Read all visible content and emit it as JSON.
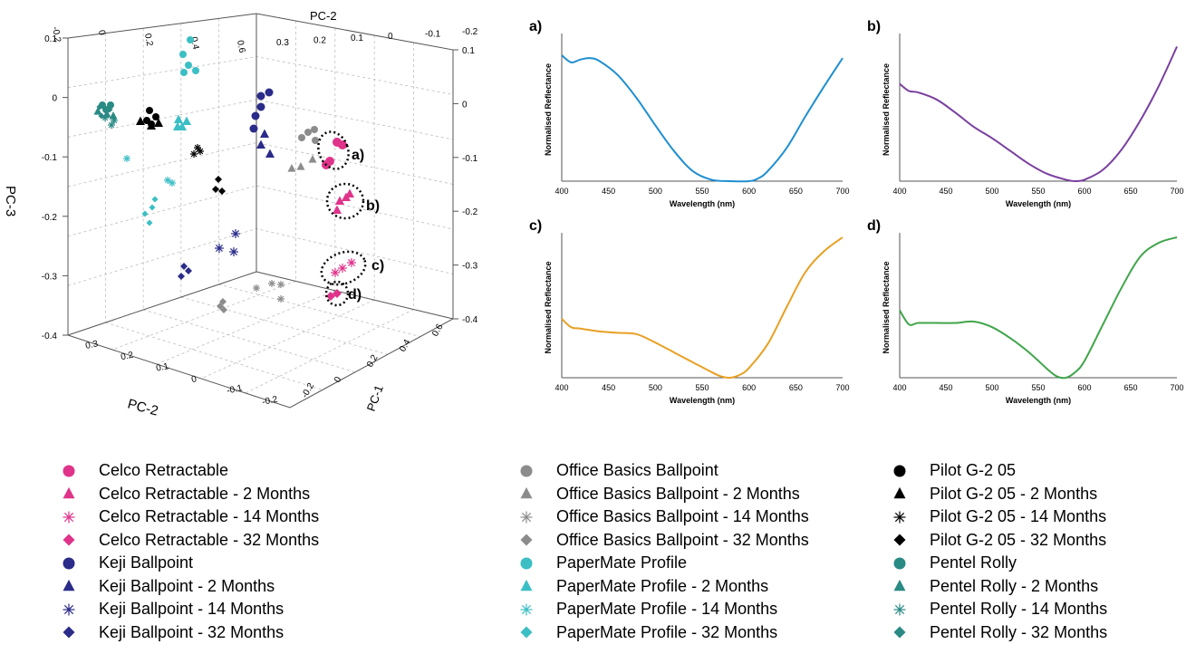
{
  "colors": {
    "celco": "#e0338a",
    "keji": "#2b2b8a",
    "office": "#8c8c8c",
    "papermate": "#3bbfc4",
    "pilot": "#000000",
    "pentel": "#2a8a84",
    "spectrum_a": "#1f8fd0",
    "spectrum_b": "#7a3fa0",
    "spectrum_c": "#e8a023",
    "spectrum_d": "#3fa54a"
  },
  "chart_data": [
    {
      "type": "scatter",
      "subtype": "3d-scatter",
      "axes": {
        "x": {
          "label": "PC-2",
          "ticks": [
            "0.3",
            "0.2",
            "0.1",
            "0",
            "-0.1",
            "-0.2"
          ]
        },
        "y": {
          "label": "PC-1",
          "ticks": [
            "0.6",
            "0.4",
            "0.2",
            "0",
            "-0.2"
          ]
        },
        "z": {
          "label": "PC-3",
          "ticks": [
            "0.1",
            "0",
            "-0.1",
            "-0.2",
            "-0.3",
            "-0.4"
          ]
        },
        "top_pc2_ticks": [
          "0.3",
          "0.2",
          "0.1",
          "0",
          "-0.1",
          "-0.2"
        ],
        "top_pc1_ticks": [
          "-0.2",
          "0",
          "0.2",
          "0.4",
          "0.6"
        ]
      },
      "grid": true,
      "callouts": [
        "a)",
        "b)",
        "c)",
        "d)"
      ],
      "series": [
        {
          "name": "Celco Retractable",
          "marker": "circle",
          "color": "celco"
        },
        {
          "name": "Celco Retractable - 2 Months",
          "marker": "triangle",
          "color": "celco"
        },
        {
          "name": "Celco Retractable - 14 Months",
          "marker": "asterisk",
          "color": "celco"
        },
        {
          "name": "Celco Retractable - 32 Months",
          "marker": "diamond",
          "color": "celco"
        },
        {
          "name": "Keji Ballpoint",
          "marker": "circle",
          "color": "keji"
        },
        {
          "name": "Keji Ballpoint - 2 Months",
          "marker": "triangle",
          "color": "keji"
        },
        {
          "name": "Keji Ballpoint - 14 Months",
          "marker": "asterisk",
          "color": "keji"
        },
        {
          "name": "Keji Ballpoint - 32 Months",
          "marker": "diamond",
          "color": "keji"
        },
        {
          "name": "Office Basics Ballpoint",
          "marker": "circle",
          "color": "office"
        },
        {
          "name": "Office Basics Ballpoint - 2 Months",
          "marker": "triangle",
          "color": "office"
        },
        {
          "name": "Office Basics Ballpoint - 14 Months",
          "marker": "asterisk",
          "color": "office"
        },
        {
          "name": "Office Basics Ballpoint - 32 Months",
          "marker": "diamond",
          "color": "office"
        },
        {
          "name": "PaperMate Profile",
          "marker": "circle",
          "color": "papermate"
        },
        {
          "name": "PaperMate Profile - 2 Months",
          "marker": "triangle",
          "color": "papermate"
        },
        {
          "name": "PaperMate Profile - 14 Months",
          "marker": "asterisk",
          "color": "papermate"
        },
        {
          "name": "PaperMate Profile - 32 Months",
          "marker": "diamond",
          "color": "papermate"
        },
        {
          "name": "Pilot G-2 05",
          "marker": "circle",
          "color": "pilot"
        },
        {
          "name": "Pilot G-2 05 - 2 Months",
          "marker": "triangle",
          "color": "pilot"
        },
        {
          "name": "Pilot G-2 05 - 14 Months",
          "marker": "asterisk",
          "color": "pilot"
        },
        {
          "name": "Pilot G-2 05 - 32 Months",
          "marker": "diamond",
          "color": "pilot"
        },
        {
          "name": "Pentel Rolly",
          "marker": "circle",
          "color": "pentel"
        },
        {
          "name": "Pentel Rolly - 2 Months",
          "marker": "triangle",
          "color": "pentel"
        },
        {
          "name": "Pentel Rolly - 14 Months",
          "marker": "asterisk",
          "color": "pentel"
        },
        {
          "name": "Pentel Rolly - 32 Months",
          "marker": "diamond",
          "color": "pentel"
        }
      ]
    },
    {
      "type": "line",
      "panel_label": "a)",
      "color": "spectrum_a",
      "xlabel": "Wavelength (nm)",
      "ylabel": "Normalised Reflectance",
      "xlim": [
        400,
        700
      ],
      "ylim": [
        0,
        1
      ],
      "x_ticks": [
        400,
        450,
        500,
        550,
        600,
        650,
        700
      ],
      "x": [
        400,
        410,
        420,
        430,
        440,
        460,
        480,
        500,
        520,
        540,
        560,
        580,
        600,
        610,
        620,
        640,
        660,
        680,
        700
      ],
      "y": [
        0.88,
        0.83,
        0.85,
        0.86,
        0.84,
        0.74,
        0.58,
        0.39,
        0.21,
        0.07,
        0.01,
        0.0,
        0.0,
        0.02,
        0.07,
        0.23,
        0.45,
        0.66,
        0.86
      ]
    },
    {
      "type": "line",
      "panel_label": "b)",
      "color": "spectrum_b",
      "xlabel": "Wavelength (nm)",
      "ylabel": "Normalised Reflectance",
      "xlim": [
        400,
        700
      ],
      "ylim": [
        0,
        1
      ],
      "x_ticks": [
        400,
        450,
        500,
        550,
        600,
        650,
        700
      ],
      "x": [
        400,
        410,
        420,
        440,
        460,
        480,
        500,
        520,
        540,
        560,
        580,
        590,
        600,
        620,
        640,
        660,
        680,
        700
      ],
      "y": [
        0.68,
        0.63,
        0.62,
        0.57,
        0.48,
        0.38,
        0.3,
        0.21,
        0.12,
        0.05,
        0.01,
        0.0,
        0.01,
        0.08,
        0.22,
        0.42,
        0.66,
        0.94
      ]
    },
    {
      "type": "line",
      "panel_label": "c)",
      "color": "spectrum_c",
      "xlabel": "Wavelength (nm)",
      "ylabel": "Normalised Reflectance",
      "xlim": [
        400,
        700
      ],
      "ylim": [
        0,
        1
      ],
      "x_ticks": [
        400,
        450,
        500,
        550,
        600,
        650,
        700
      ],
      "x": [
        400,
        410,
        420,
        440,
        460,
        480,
        500,
        520,
        540,
        560,
        570,
        580,
        590,
        600,
        620,
        640,
        660,
        680,
        700
      ],
      "y": [
        0.42,
        0.36,
        0.35,
        0.33,
        0.32,
        0.31,
        0.25,
        0.18,
        0.11,
        0.04,
        0.01,
        0.0,
        0.02,
        0.07,
        0.24,
        0.5,
        0.75,
        0.9,
        1.0
      ]
    },
    {
      "type": "line",
      "panel_label": "d)",
      "color": "spectrum_d",
      "xlabel": "Wavelength (nm)",
      "ylabel": "Normalised Reflectance",
      "xlim": [
        400,
        700
      ],
      "ylim": [
        0,
        1
      ],
      "x_ticks": [
        400,
        450,
        500,
        550,
        600,
        650,
        700
      ],
      "x": [
        400,
        410,
        420,
        440,
        460,
        480,
        500,
        520,
        540,
        560,
        570,
        580,
        590,
        600,
        620,
        640,
        660,
        680,
        700
      ],
      "y": [
        0.48,
        0.38,
        0.39,
        0.39,
        0.39,
        0.4,
        0.36,
        0.28,
        0.18,
        0.06,
        0.01,
        0.0,
        0.04,
        0.12,
        0.38,
        0.64,
        0.86,
        0.96,
        1.0
      ]
    }
  ]
}
